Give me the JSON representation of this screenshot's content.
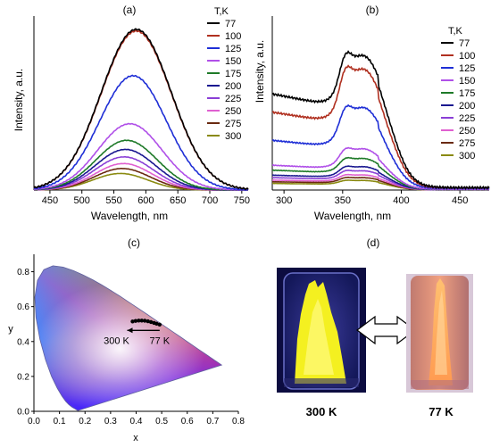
{
  "figure": {
    "colors": {
      "77": "#000000",
      "100": "#b03020",
      "125": "#1f2fd6",
      "150": "#b050e8",
      "175": "#1e7a28",
      "200": "#1a1890",
      "225": "#8a3fd6",
      "250": "#e060d0",
      "275": "#6a2a10",
      "300": "#8a8a10"
    }
  },
  "chart_data": [
    {
      "panel_label": "(a)",
      "type": "line",
      "xlabel": "Wavelength, nm",
      "ylabel": "Intensity, a.u.",
      "xlim": [
        425,
        760
      ],
      "ylim": [
        0,
        1.05
      ],
      "xticks": [
        450,
        500,
        550,
        600,
        650,
        700,
        750
      ],
      "legend_title": "T,K",
      "legend_position": "top-right",
      "series": [
        {
          "name": "77",
          "shape": "gauss",
          "peak": 585,
          "sigma": 55,
          "amp": 0.97
        },
        {
          "name": "100",
          "shape": "gauss",
          "peak": 585,
          "sigma": 55,
          "amp": 0.96
        },
        {
          "name": "125",
          "shape": "gauss",
          "peak": 580,
          "sigma": 52,
          "amp": 0.69
        },
        {
          "name": "150",
          "shape": "gauss",
          "peak": 575,
          "sigma": 50,
          "amp": 0.4
        },
        {
          "name": "175",
          "shape": "gauss",
          "peak": 570,
          "sigma": 48,
          "amp": 0.3
        },
        {
          "name": "200",
          "shape": "gauss",
          "peak": 568,
          "sigma": 47,
          "amp": 0.245
        },
        {
          "name": "225",
          "shape": "gauss",
          "peak": 566,
          "sigma": 46,
          "amp": 0.2
        },
        {
          "name": "250",
          "shape": "gauss",
          "peak": 565,
          "sigma": 45,
          "amp": 0.16
        },
        {
          "name": "275",
          "shape": "gauss",
          "peak": 563,
          "sigma": 44,
          "amp": 0.13
        },
        {
          "name": "300",
          "shape": "gauss",
          "peak": 560,
          "sigma": 43,
          "amp": 0.1
        }
      ]
    },
    {
      "panel_label": "(b)",
      "type": "line",
      "xlabel": "Wavelength, nm",
      "ylabel": "Intensity, a.u.",
      "xlim": [
        290,
        475
      ],
      "ylim": [
        0,
        1.05
      ],
      "xticks": [
        300,
        350,
        400,
        450
      ],
      "legend_title": "T,K",
      "legend_position": "top-right",
      "series": [
        {
          "name": "77",
          "shape": "excitation",
          "amp": 0.98,
          "base": 0.58
        },
        {
          "name": "100",
          "shape": "excitation",
          "amp": 0.88,
          "base": 0.47
        },
        {
          "name": "125",
          "shape": "excitation",
          "amp": 0.6,
          "base": 0.3
        },
        {
          "name": "150",
          "shape": "excitation",
          "amp": 0.3,
          "base": 0.15
        },
        {
          "name": "175",
          "shape": "excitation",
          "amp": 0.23,
          "base": 0.12
        },
        {
          "name": "200",
          "shape": "excitation",
          "amp": 0.17,
          "base": 0.09
        },
        {
          "name": "225",
          "shape": "excitation",
          "amp": 0.14,
          "base": 0.075
        },
        {
          "name": "250",
          "shape": "excitation",
          "amp": 0.11,
          "base": 0.06
        },
        {
          "name": "275",
          "shape": "excitation",
          "amp": 0.09,
          "base": 0.05
        },
        {
          "name": "300",
          "shape": "excitation",
          "amp": 0.07,
          "base": 0.04
        }
      ]
    },
    {
      "panel_label": "(c)",
      "type": "scatter",
      "xlabel": "x",
      "ylabel": "y",
      "xlim": [
        0.0,
        0.8
      ],
      "ylim": [
        0.0,
        0.9
      ],
      "xticks": [
        0.0,
        0.1,
        0.2,
        0.3,
        0.4,
        0.5,
        0.6,
        0.7,
        0.8
      ],
      "yticks": [
        0.0,
        0.2,
        0.4,
        0.6,
        0.8
      ],
      "points": [
        {
          "x": 0.386,
          "y": 0.515
        },
        {
          "x": 0.398,
          "y": 0.518
        },
        {
          "x": 0.41,
          "y": 0.52
        },
        {
          "x": 0.422,
          "y": 0.52
        },
        {
          "x": 0.434,
          "y": 0.519
        },
        {
          "x": 0.446,
          "y": 0.516
        },
        {
          "x": 0.458,
          "y": 0.512
        },
        {
          "x": 0.47,
          "y": 0.507
        },
        {
          "x": 0.48,
          "y": 0.502
        },
        {
          "x": 0.492,
          "y": 0.497
        }
      ],
      "annotations": {
        "left": "300 K",
        "right": "77 K"
      }
    }
  ],
  "photos": {
    "panel_label": "(d)",
    "left_caption": "300 K",
    "right_caption": "77 K"
  }
}
